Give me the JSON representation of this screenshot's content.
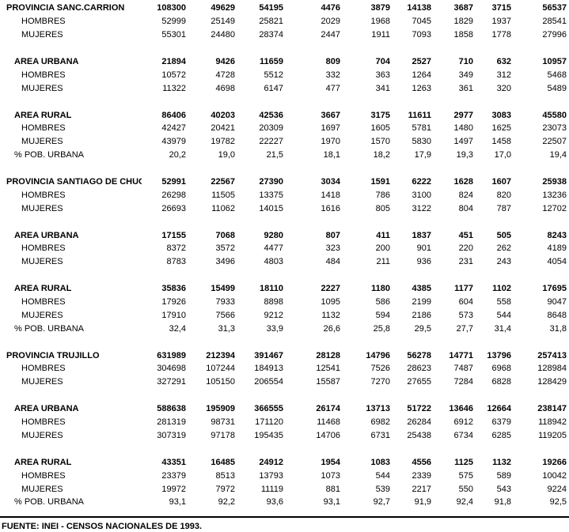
{
  "table": {
    "rows": [
      {
        "style": "province",
        "label": "PROVINCIA SANC.CARRION",
        "values": [
          "108300",
          "49629",
          "54195",
          "4476",
          "3879",
          "14138",
          "3687",
          "3715",
          "56537"
        ]
      },
      {
        "style": "sub",
        "label": "HOMBRES",
        "values": [
          "52999",
          "25149",
          "25821",
          "2029",
          "1968",
          "7045",
          "1829",
          "1937",
          "28541"
        ]
      },
      {
        "style": "sub",
        "label": "MUJERES",
        "values": [
          "55301",
          "24480",
          "28374",
          "2447",
          "1911",
          "7093",
          "1858",
          "1778",
          "27996"
        ]
      },
      {
        "style": "spacer"
      },
      {
        "style": "group",
        "label": "AREA URBANA",
        "values": [
          "21894",
          "9426",
          "11659",
          "809",
          "704",
          "2527",
          "710",
          "632",
          "10957"
        ]
      },
      {
        "style": "sub",
        "label": "HOMBRES",
        "values": [
          "10572",
          "4728",
          "5512",
          "332",
          "363",
          "1264",
          "349",
          "312",
          "5468"
        ]
      },
      {
        "style": "sub",
        "label": "MUJERES",
        "values": [
          "11322",
          "4698",
          "6147",
          "477",
          "341",
          "1263",
          "361",
          "320",
          "5489"
        ]
      },
      {
        "style": "spacer"
      },
      {
        "style": "group",
        "label": "AREA RURAL",
        "values": [
          "86406",
          "40203",
          "42536",
          "3667",
          "3175",
          "11611",
          "2977",
          "3083",
          "45580"
        ]
      },
      {
        "style": "sub",
        "label": "HOMBRES",
        "values": [
          "42427",
          "20421",
          "20309",
          "1697",
          "1605",
          "5781",
          "1480",
          "1625",
          "23073"
        ]
      },
      {
        "style": "sub",
        "label": "MUJERES",
        "values": [
          "43979",
          "19782",
          "22227",
          "1970",
          "1570",
          "5830",
          "1497",
          "1458",
          "22507"
        ]
      },
      {
        "style": "pct",
        "label": "% POB. URBANA",
        "values": [
          "20,2",
          "19,0",
          "21,5",
          "18,1",
          "18,2",
          "17,9",
          "19,3",
          "17,0",
          "19,4"
        ]
      },
      {
        "style": "spacer"
      },
      {
        "style": "province",
        "label": "PROVINCIA SANTIAGO DE CHUCO",
        "values": [
          "52991",
          "22567",
          "27390",
          "3034",
          "1591",
          "6222",
          "1628",
          "1607",
          "25938"
        ]
      },
      {
        "style": "sub",
        "label": "HOMBRES",
        "values": [
          "26298",
          "11505",
          "13375",
          "1418",
          "786",
          "3100",
          "824",
          "820",
          "13236"
        ]
      },
      {
        "style": "sub",
        "label": "MUJERES",
        "values": [
          "26693",
          "11062",
          "14015",
          "1616",
          "805",
          "3122",
          "804",
          "787",
          "12702"
        ]
      },
      {
        "style": "spacer"
      },
      {
        "style": "group",
        "label": "AREA URBANA",
        "values": [
          "17155",
          "7068",
          "9280",
          "807",
          "411",
          "1837",
          "451",
          "505",
          "8243"
        ]
      },
      {
        "style": "sub",
        "label": "HOMBRES",
        "values": [
          "8372",
          "3572",
          "4477",
          "323",
          "200",
          "901",
          "220",
          "262",
          "4189"
        ]
      },
      {
        "style": "sub",
        "label": "MUJERES",
        "values": [
          "8783",
          "3496",
          "4803",
          "484",
          "211",
          "936",
          "231",
          "243",
          "4054"
        ]
      },
      {
        "style": "spacer"
      },
      {
        "style": "group",
        "label": "AREA RURAL",
        "values": [
          "35836",
          "15499",
          "18110",
          "2227",
          "1180",
          "4385",
          "1177",
          "1102",
          "17695"
        ]
      },
      {
        "style": "sub",
        "label": "HOMBRES",
        "values": [
          "17926",
          "7933",
          "8898",
          "1095",
          "586",
          "2199",
          "604",
          "558",
          "9047"
        ]
      },
      {
        "style": "sub",
        "label": "MUJERES",
        "values": [
          "17910",
          "7566",
          "9212",
          "1132",
          "594",
          "2186",
          "573",
          "544",
          "8648"
        ]
      },
      {
        "style": "pct",
        "label": "% POB. URBANA",
        "values": [
          "32,4",
          "31,3",
          "33,9",
          "26,6",
          "25,8",
          "29,5",
          "27,7",
          "31,4",
          "31,8"
        ]
      },
      {
        "style": "spacer"
      },
      {
        "style": "province",
        "label": "PROVINCIA TRUJILLO",
        "values": [
          "631989",
          "212394",
          "391467",
          "28128",
          "14796",
          "56278",
          "14771",
          "13796",
          "257413"
        ]
      },
      {
        "style": "sub",
        "label": "HOMBRES",
        "values": [
          "304698",
          "107244",
          "184913",
          "12541",
          "7526",
          "28623",
          "7487",
          "6968",
          "128984"
        ]
      },
      {
        "style": "sub",
        "label": "MUJERES",
        "values": [
          "327291",
          "105150",
          "206554",
          "15587",
          "7270",
          "27655",
          "7284",
          "6828",
          "128429"
        ]
      },
      {
        "style": "spacer"
      },
      {
        "style": "group",
        "label": "AREA URBANA",
        "values": [
          "588638",
          "195909",
          "366555",
          "26174",
          "13713",
          "51722",
          "13646",
          "12664",
          "238147"
        ]
      },
      {
        "style": "sub",
        "label": "HOMBRES",
        "values": [
          "281319",
          "98731",
          "171120",
          "11468",
          "6982",
          "26284",
          "6912",
          "6379",
          "118942"
        ]
      },
      {
        "style": "sub",
        "label": "MUJERES",
        "values": [
          "307319",
          "97178",
          "195435",
          "14706",
          "6731",
          "25438",
          "6734",
          "6285",
          "119205"
        ]
      },
      {
        "style": "spacer"
      },
      {
        "style": "group",
        "label": "AREA RURAL",
        "values": [
          "43351",
          "16485",
          "24912",
          "1954",
          "1083",
          "4556",
          "1125",
          "1132",
          "19266"
        ]
      },
      {
        "style": "sub",
        "label": "HOMBRES",
        "values": [
          "23379",
          "8513",
          "13793",
          "1073",
          "544",
          "2339",
          "575",
          "589",
          "10042"
        ]
      },
      {
        "style": "sub",
        "label": "MUJERES",
        "values": [
          "19972",
          "7972",
          "11119",
          "881",
          "539",
          "2217",
          "550",
          "543",
          "9224"
        ]
      },
      {
        "style": "pct",
        "label": "% POB. URBANA",
        "values": [
          "93,1",
          "92,2",
          "93,6",
          "93,1",
          "92,7",
          "91,9",
          "92,4",
          "91,8",
          "92,5"
        ]
      }
    ]
  },
  "footer": {
    "source": "FUENTE: INEI - CENSOS NACIONALES DE 1993."
  },
  "colors": {
    "text": "#000000",
    "background": "#ffffff"
  }
}
